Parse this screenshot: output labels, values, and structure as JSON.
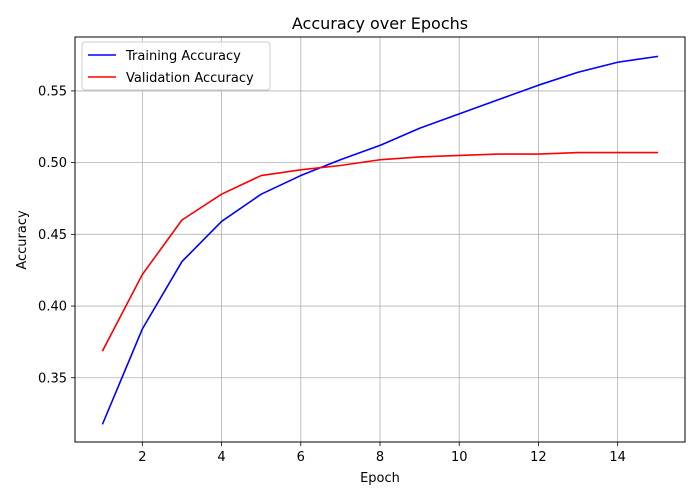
{
  "chart_data": {
    "type": "line",
    "title": "Accuracy over Epochs",
    "xlabel": "Epoch",
    "ylabel": "Accuracy",
    "x": [
      1,
      2,
      3,
      4,
      5,
      6,
      7,
      8,
      9,
      10,
      11,
      12,
      13,
      14,
      15
    ],
    "xlim": [
      0.3,
      15.7
    ],
    "ylim": [
      0.3052,
      0.5876
    ],
    "xticks": [
      2,
      4,
      6,
      8,
      10,
      12,
      14
    ],
    "xtick_labels": [
      "2",
      "4",
      "6",
      "8",
      "10",
      "12",
      "14"
    ],
    "yticks": [
      0.35,
      0.4,
      0.45,
      0.5,
      0.55
    ],
    "ytick_labels": [
      "0.35",
      "0.40",
      "0.45",
      "0.50",
      "0.55"
    ],
    "grid": true,
    "legend_position": "top-left",
    "series": [
      {
        "name": "Training Accuracy",
        "color": "#0000ff",
        "values": [
          0.318,
          0.384,
          0.431,
          0.459,
          0.478,
          0.491,
          0.502,
          0.512,
          0.524,
          0.534,
          0.544,
          0.554,
          0.563,
          0.57,
          0.574
        ]
      },
      {
        "name": "Validation Accuracy",
        "color": "#ff0000",
        "values": [
          0.369,
          0.422,
          0.46,
          0.478,
          0.491,
          0.495,
          0.498,
          0.502,
          0.504,
          0.505,
          0.506,
          0.506,
          0.507,
          0.507,
          0.507
        ]
      }
    ]
  }
}
